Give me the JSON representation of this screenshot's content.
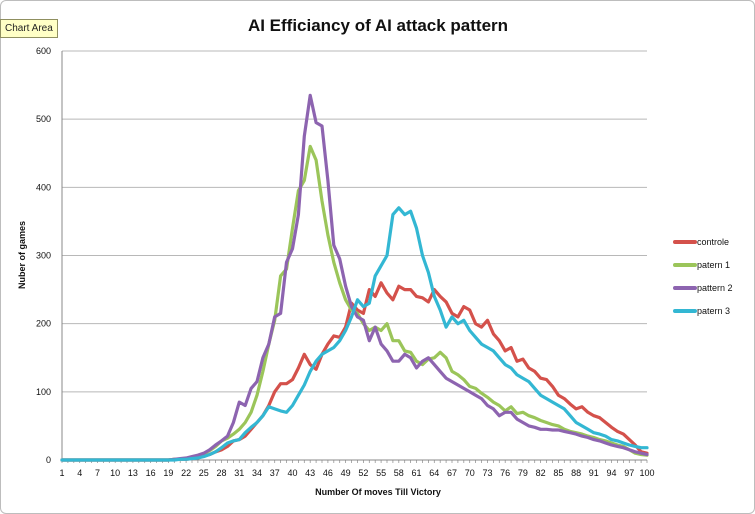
{
  "chart_area_label": "Chart Area",
  "chart_data": {
    "type": "line",
    "title": "AI Efficiancy of AI attack pattern",
    "xlabel": "Number Of moves Till Victory",
    "ylabel": "Nuber of games",
    "ylim": [
      0,
      600
    ],
    "yticks": [
      0,
      100,
      200,
      300,
      400,
      500,
      600
    ],
    "ytick_labels": [
      "0",
      "100",
      "200",
      "300",
      "400",
      "500",
      "600"
    ],
    "x_start": 1,
    "x_end": 100,
    "xtick_labels": [
      "1",
      "4",
      "7",
      "10",
      "13",
      "16",
      "19",
      "22",
      "25",
      "28",
      "31",
      "34",
      "37",
      "40",
      "43",
      "46",
      "49",
      "52",
      "55",
      "58",
      "61",
      "64",
      "67",
      "70",
      "73",
      "76",
      "79",
      "82",
      "85",
      "88",
      "91",
      "94",
      "97",
      "100"
    ],
    "gridlines": true,
    "legend_position": "right",
    "series": [
      {
        "name": "controle",
        "color": "#d4514b",
        "values": [
          0,
          0,
          0,
          0,
          0,
          0,
          0,
          0,
          0,
          0,
          0,
          0,
          0,
          0,
          0,
          0,
          0,
          0,
          0,
          1,
          1,
          1,
          2,
          3,
          6,
          8,
          12,
          15,
          20,
          28,
          30,
          35,
          45,
          55,
          65,
          80,
          100,
          112,
          112,
          118,
          135,
          155,
          140,
          133,
          155,
          170,
          182,
          180,
          195,
          230,
          220,
          215,
          250,
          240,
          260,
          245,
          235,
          255,
          250,
          250,
          240,
          238,
          232,
          250,
          240,
          232,
          215,
          210,
          225,
          220,
          200,
          195,
          205,
          185,
          175,
          160,
          165,
          145,
          148,
          135,
          130,
          120,
          118,
          108,
          95,
          90,
          82,
          75,
          78,
          70,
          65,
          62,
          55,
          48,
          42,
          38,
          30,
          22,
          12,
          10
        ]
      },
      {
        "name": "patern 1",
        "color": "#9bc55a",
        "values": [
          0,
          0,
          0,
          0,
          0,
          0,
          0,
          0,
          0,
          0,
          0,
          0,
          0,
          0,
          0,
          0,
          0,
          0,
          0,
          1,
          1,
          2,
          4,
          6,
          9,
          14,
          20,
          28,
          32,
          38,
          45,
          55,
          70,
          95,
          130,
          170,
          205,
          270,
          280,
          340,
          395,
          410,
          460,
          440,
          380,
          330,
          290,
          260,
          235,
          220,
          215,
          200,
          190,
          195,
          190,
          200,
          175,
          175,
          160,
          158,
          145,
          140,
          148,
          150,
          158,
          150,
          130,
          125,
          118,
          108,
          105,
          98,
          92,
          85,
          80,
          72,
          78,
          68,
          70,
          65,
          62,
          58,
          55,
          52,
          50,
          45,
          42,
          40,
          38,
          35,
          33,
          30,
          28,
          25,
          22,
          20,
          15,
          10,
          8,
          7
        ]
      },
      {
        "name": "pattern 2",
        "color": "#8d64b0",
        "values": [
          0,
          0,
          0,
          0,
          0,
          0,
          0,
          0,
          0,
          0,
          0,
          0,
          0,
          0,
          0,
          0,
          0,
          0,
          0,
          1,
          2,
          3,
          5,
          7,
          10,
          15,
          22,
          28,
          35,
          55,
          85,
          80,
          105,
          115,
          150,
          170,
          210,
          215,
          290,
          310,
          360,
          475,
          535,
          495,
          490,
          410,
          315,
          295,
          255,
          225,
          210,
          205,
          175,
          195,
          170,
          160,
          145,
          145,
          155,
          150,
          135,
          145,
          150,
          140,
          130,
          120,
          115,
          110,
          105,
          100,
          95,
          90,
          80,
          75,
          65,
          70,
          70,
          60,
          55,
          50,
          48,
          45,
          45,
          44,
          44,
          42,
          40,
          38,
          35,
          33,
          30,
          28,
          25,
          22,
          20,
          18,
          15,
          12,
          10,
          8
        ]
      },
      {
        "name": "patern 3",
        "color": "#33b7d3",
        "values": [
          0,
          0,
          0,
          0,
          0,
          0,
          0,
          0,
          0,
          0,
          0,
          0,
          0,
          0,
          0,
          0,
          0,
          0,
          0,
          0,
          1,
          1,
          2,
          3,
          5,
          8,
          12,
          18,
          25,
          28,
          30,
          40,
          48,
          55,
          65,
          78,
          75,
          72,
          70,
          80,
          95,
          110,
          130,
          145,
          155,
          160,
          165,
          175,
          190,
          210,
          235,
          225,
          230,
          270,
          285,
          300,
          360,
          370,
          360,
          365,
          340,
          300,
          275,
          240,
          220,
          195,
          210,
          200,
          205,
          190,
          180,
          170,
          165,
          160,
          150,
          140,
          135,
          125,
          120,
          115,
          105,
          95,
          90,
          85,
          80,
          75,
          65,
          55,
          50,
          45,
          40,
          38,
          35,
          30,
          28,
          25,
          22,
          20,
          18,
          18
        ]
      }
    ]
  }
}
